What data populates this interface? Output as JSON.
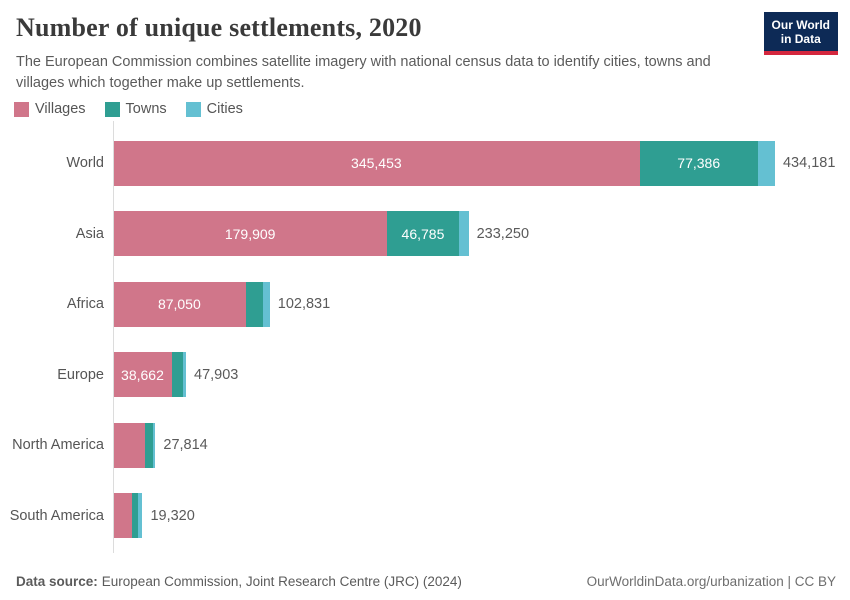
{
  "header": {
    "title": "Number of unique settlements, 2020",
    "subtitle": "The European Commission combines satellite imagery with national census data to identify cities, towns and villages which together make up settlements.",
    "logo": {
      "line1": "Our World",
      "line2": "in Data",
      "bg_color": "#0d2a56",
      "accent_color": "#d4273e"
    }
  },
  "chart_data": {
    "type": "bar",
    "orientation": "horizontal",
    "stacked": true,
    "title": "Number of unique settlements, 2020",
    "xlabel": "",
    "ylabel": "",
    "grid": false,
    "legend_position": "top-left",
    "legend_entries": [
      "Villages",
      "Towns",
      "Cities"
    ],
    "xlim": [
      0,
      434181
    ],
    "categories": [
      "World",
      "Asia",
      "Africa",
      "Europe",
      "North America",
      "South America"
    ],
    "series": [
      {
        "name": "Villages",
        "color": "#d0768a",
        "values": [
          345453,
          179909,
          87050,
          38662,
          21000,
          12300
        ],
        "labels": [
          "345,453",
          "179,909",
          "87,050",
          "38,662",
          null,
          null
        ]
      },
      {
        "name": "Towns",
        "color": "#2f9e92",
        "values": [
          77386,
          46785,
          11500,
          7300,
          5050,
          3950
        ],
        "labels": [
          "77,386",
          "46,785",
          null,
          null,
          null,
          null
        ]
      },
      {
        "name": "Cities",
        "color": "#64c0d2",
        "values": [
          11342,
          6556,
          4281,
          1941,
          1764,
          3070
        ],
        "labels": [
          null,
          null,
          null,
          null,
          null,
          null
        ]
      }
    ],
    "totals": {
      "values": [
        434181,
        233250,
        102831,
        47903,
        27814,
        19320
      ],
      "labels": [
        "434,181",
        "233,250",
        "102,831",
        "47,903",
        "27,814",
        "19,320"
      ]
    }
  },
  "footer": {
    "datasource_label": "Data source:",
    "datasource_text": "European Commission, Joint Research Centre (JRC) (2024)",
    "right_text": "OurWorldinData.org/urbanization | CC BY"
  }
}
